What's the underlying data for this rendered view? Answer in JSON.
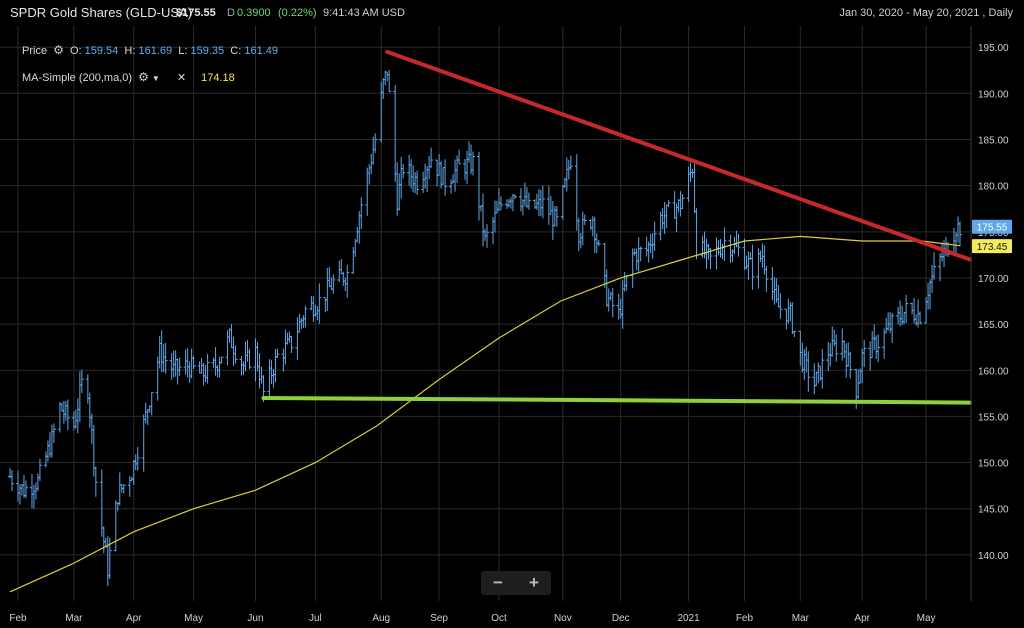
{
  "header": {
    "title": "SPDR Gold Shares (GLD-USA)",
    "price": "$175.55",
    "flag": "D",
    "change": "0.3900",
    "change_pct": "(0.22%)",
    "time": "9:41:43 AM USD",
    "range": "Jan 30, 2020 - May 20, 2021 , Daily"
  },
  "legend": {
    "price_label": "Price",
    "o_label": "O:",
    "o": "159.54",
    "h_label": "H:",
    "h": "161.69",
    "l_label": "L:",
    "l": "159.35",
    "c_label": "C:",
    "c": "161.49",
    "ma_label": "MA-Simple (200,ma,0)",
    "ma_value": "174.18",
    "close_icon": "close-icon",
    "gear_icon": "gear-icon"
  },
  "zoom": {
    "minus": "−",
    "plus": "+"
  },
  "colors": {
    "bars": "#5fa8e8",
    "ma": "#d9cf3a",
    "resistance": "#c8282c",
    "support": "#8fd13a",
    "grid": "#2a2a2a",
    "last_price_bg": "#5fa8e8",
    "ma_badge_bg": "#f4ec5e"
  },
  "chart_data": {
    "type": "ohlc",
    "ylim": [
      135,
      196
    ],
    "y_ticks": [
      "140.00",
      "145.00",
      "150.00",
      "155.00",
      "160.00",
      "165.00",
      "170.00",
      "175.00",
      "180.00",
      "185.00",
      "190.00",
      "195.00"
    ],
    "x_ticks": [
      "Feb",
      "Mar",
      "Apr",
      "May",
      "Jun",
      "Jul",
      "Aug",
      "Sep",
      "Oct",
      "Nov",
      "Dec",
      "2021",
      "Feb",
      "Mar",
      "Apr",
      "May"
    ],
    "last_price_label": "175.55",
    "ma_label_value": "173.45",
    "price_path": [
      [
        "2020-01-30",
        148.5
      ],
      [
        "2020-02-06",
        147.0
      ],
      [
        "2020-02-13",
        148.0
      ],
      [
        "2020-02-20",
        152.5
      ],
      [
        "2020-02-24",
        156.0
      ],
      [
        "2020-03-02",
        154.0
      ],
      [
        "2020-03-06",
        158.5
      ],
      [
        "2020-03-09",
        158.0
      ],
      [
        "2020-03-13",
        148.0
      ],
      [
        "2020-03-16",
        143.0
      ],
      [
        "2020-03-19",
        138.5
      ],
      [
        "2020-03-24",
        146.5
      ],
      [
        "2020-03-31",
        149.0
      ],
      [
        "2020-04-07",
        155.0
      ],
      [
        "2020-04-14",
        162.0
      ],
      [
        "2020-04-21",
        160.0
      ],
      [
        "2020-04-28",
        160.5
      ],
      [
        "2020-05-05",
        159.5
      ],
      [
        "2020-05-12",
        160.5
      ],
      [
        "2020-05-19",
        163.5
      ],
      [
        "2020-05-26",
        160.5
      ],
      [
        "2020-06-01",
        162.0
      ],
      [
        "2020-06-05",
        157.5
      ],
      [
        "2020-06-12",
        161.5
      ],
      [
        "2020-06-19",
        163.0
      ],
      [
        "2020-06-26",
        166.5
      ],
      [
        "2020-07-03",
        167.5
      ],
      [
        "2020-07-10",
        169.5
      ],
      [
        "2020-07-17",
        170.5
      ],
      [
        "2020-07-24",
        178.0
      ],
      [
        "2020-07-28",
        182.0
      ],
      [
        "2020-07-31",
        185.0
      ],
      [
        "2020-08-04",
        191.0
      ],
      [
        "2020-08-06",
        192.5
      ],
      [
        "2020-08-11",
        178.5
      ],
      [
        "2020-08-14",
        182.0
      ],
      [
        "2020-08-21",
        180.5
      ],
      [
        "2020-08-28",
        183.0
      ],
      [
        "2020-09-04",
        180.5
      ],
      [
        "2020-09-11",
        182.0
      ],
      [
        "2020-09-18",
        182.5
      ],
      [
        "2020-09-24",
        174.0
      ],
      [
        "2020-10-02",
        178.0
      ],
      [
        "2020-10-09",
        179.5
      ],
      [
        "2020-10-16",
        177.5
      ],
      [
        "2020-10-23",
        178.0
      ],
      [
        "2020-10-30",
        176.0
      ],
      [
        "2020-11-06",
        183.0
      ],
      [
        "2020-11-10",
        175.0
      ],
      [
        "2020-11-17",
        176.5
      ],
      [
        "2020-11-24",
        168.0
      ],
      [
        "2020-11-30",
        166.0
      ],
      [
        "2020-12-07",
        172.5
      ],
      [
        "2020-12-14",
        173.0
      ],
      [
        "2020-12-21",
        176.5
      ],
      [
        "2020-12-31",
        178.0
      ],
      [
        "2021-01-06",
        182.0
      ],
      [
        "2021-01-08",
        173.5
      ],
      [
        "2021-01-15",
        172.0
      ],
      [
        "2021-01-22",
        174.0
      ],
      [
        "2021-01-29",
        173.0
      ],
      [
        "2021-02-05",
        171.0
      ],
      [
        "2021-02-10",
        172.5
      ],
      [
        "2021-02-17",
        167.0
      ],
      [
        "2021-02-24",
        166.0
      ],
      [
        "2021-03-01",
        161.5
      ],
      [
        "2021-03-08",
        158.5
      ],
      [
        "2021-03-15",
        162.0
      ],
      [
        "2021-03-22",
        163.0
      ],
      [
        "2021-03-29",
        158.0
      ],
      [
        "2021-04-01",
        161.5
      ],
      [
        "2021-04-09",
        163.0
      ],
      [
        "2021-04-16",
        165.0
      ],
      [
        "2021-04-23",
        166.5
      ],
      [
        "2021-04-30",
        166.0
      ],
      [
        "2021-05-05",
        169.5
      ],
      [
        "2021-05-10",
        172.0
      ],
      [
        "2021-05-14",
        173.5
      ],
      [
        "2021-05-18",
        175.5
      ]
    ],
    "ma_path": [
      [
        "2020-01-30",
        136.0
      ],
      [
        "2020-03-01",
        139.0
      ],
      [
        "2020-04-01",
        142.5
      ],
      [
        "2020-05-01",
        145.0
      ],
      [
        "2020-06-01",
        147.0
      ],
      [
        "2020-07-01",
        150.0
      ],
      [
        "2020-08-01",
        154.0
      ],
      [
        "2020-09-01",
        159.0
      ],
      [
        "2020-10-01",
        163.5
      ],
      [
        "2020-11-01",
        167.5
      ],
      [
        "2020-12-01",
        170.0
      ],
      [
        "2021-01-01",
        172.0
      ],
      [
        "2021-02-01",
        174.0
      ],
      [
        "2021-03-01",
        174.5
      ],
      [
        "2021-04-01",
        174.0
      ],
      [
        "2021-05-01",
        174.0
      ],
      [
        "2021-05-20",
        173.5
      ]
    ],
    "trendlines": [
      {
        "name": "resistance",
        "from": [
          "2020-08-06",
          194.5
        ],
        "to": [
          "2021-05-20",
          172.0
        ]
      },
      {
        "name": "support",
        "from": [
          "2020-06-05",
          157.0
        ],
        "to": [
          "2021-05-20",
          156.5
        ]
      }
    ],
    "grid": true,
    "y_axis": "right"
  }
}
